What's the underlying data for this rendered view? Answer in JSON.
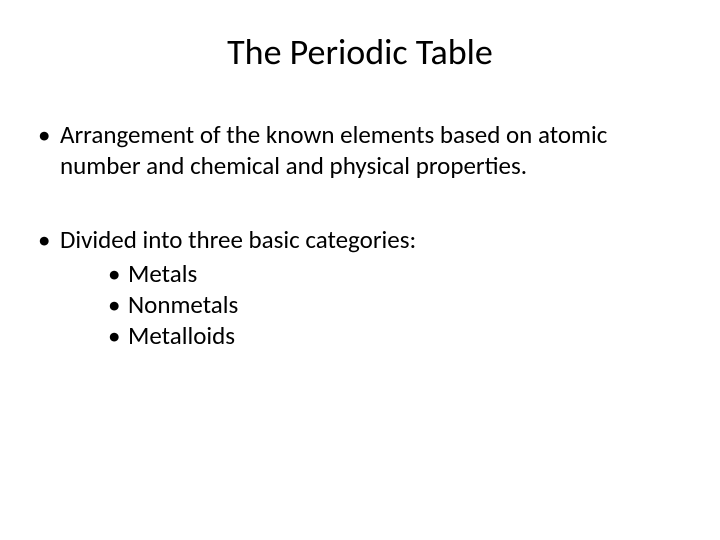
{
  "title": "The Periodic Table",
  "bullets": [
    {
      "text": "Arrangement of the known elements based on atomic number and chemical and physical properties."
    },
    {
      "text": "Divided into three basic categories:",
      "sub": [
        "Metals",
        "Nonmetals",
        "Metalloids"
      ]
    }
  ],
  "style": {
    "background_color": "#ffffff",
    "text_color": "#000000",
    "title_fontsize": 36,
    "body_fontsize": 25,
    "font_family": "Calibri"
  }
}
